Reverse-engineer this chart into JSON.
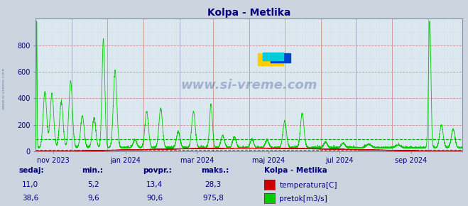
{
  "title": "Kolpa - Metlika",
  "bg_color": "#ccd4e0",
  "plot_bg_color": "#dce8f0",
  "grid_color_major_h": "#d08888",
  "grid_color_minor_h": "#c8c8d8",
  "grid_color_major_v": "#d09090",
  "grid_color_minor_v": "#c8c8d8",
  "temp_color": "#cc0000",
  "flow_color": "#00cc00",
  "avg_flow_color": "#00aa00",
  "avg_temp_color": "#cc2222",
  "ylim": [
    0,
    1000
  ],
  "yticks": [
    0,
    200,
    400,
    600,
    800
  ],
  "watermark": "www.si-vreme.com",
  "station_label": "Kolpa - Metlika",
  "sedaj_temp": "11,0",
  "sedaj_flow": "38,6",
  "min_temp": "5,2",
  "min_flow": "9,6",
  "avg_temp": "13,4",
  "avg_flow": "90,6",
  "max_temp": "28,3",
  "max_flow": "975,8",
  "flow_avg": 90.6,
  "temp_avg": 13.4,
  "tick_labels": [
    "nov 2023",
    "jan 2024",
    "mar 2024",
    "maj 2024",
    "jul 2024",
    "sep 2024"
  ],
  "tick_positions": [
    15,
    77,
    138,
    199,
    260,
    321
  ]
}
